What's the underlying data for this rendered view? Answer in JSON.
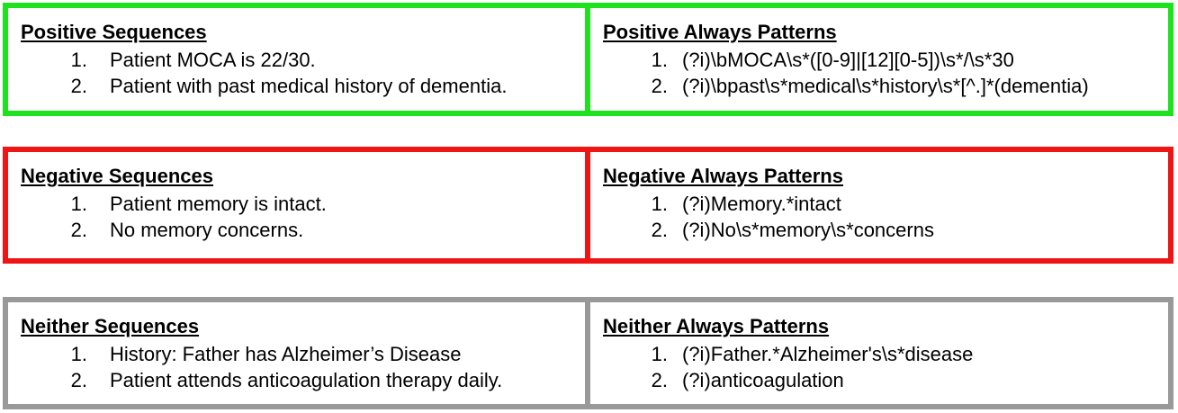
{
  "colors": {
    "positive_border": "#1ee21e",
    "negative_border": "#f01515",
    "neither_border": "#999999"
  },
  "positive": {
    "sequences_title": "Positive Sequences",
    "sequences": [
      {
        "num": "1.",
        "text": "Patient MOCA is 22/30."
      },
      {
        "num": "2.",
        "text": "Patient with past medical history of dementia."
      }
    ],
    "patterns_title": "Positive Always Patterns",
    "patterns": [
      {
        "num": "1.",
        "text": "(?i)\\bMOCA\\s*([0-9]|[12][0-5])\\s*/\\s*30"
      },
      {
        "num": "2.",
        "text": "(?i)\\bpast\\s*medical\\s*history\\s*[^.]*(dementia)"
      }
    ]
  },
  "negative": {
    "sequences_title": "Negative Sequences",
    "sequences": [
      {
        "num": "1.",
        "text": "Patient memory is intact."
      },
      {
        "num": "2.",
        "text": "No memory concerns."
      }
    ],
    "patterns_title": "Negative Always Patterns",
    "patterns": [
      {
        "num": "1.",
        "text": "(?i)Memory.*intact"
      },
      {
        "num": "2.",
        "text": "(?i)No\\s*memory\\s*concerns"
      }
    ]
  },
  "neither": {
    "sequences_title": "Neither Sequences",
    "sequences": [
      {
        "num": "1.",
        "text": "History: Father has Alzheimer’s Disease"
      },
      {
        "num": "2.",
        "text": "Patient attends anticoagulation therapy daily."
      }
    ],
    "patterns_title": "Neither Always Patterns",
    "patterns": [
      {
        "num": "1.",
        "text": "(?i)Father.*Alzheimer's\\s*disease"
      },
      {
        "num": "2.",
        "text": "(?i)anticoagulation"
      }
    ]
  }
}
